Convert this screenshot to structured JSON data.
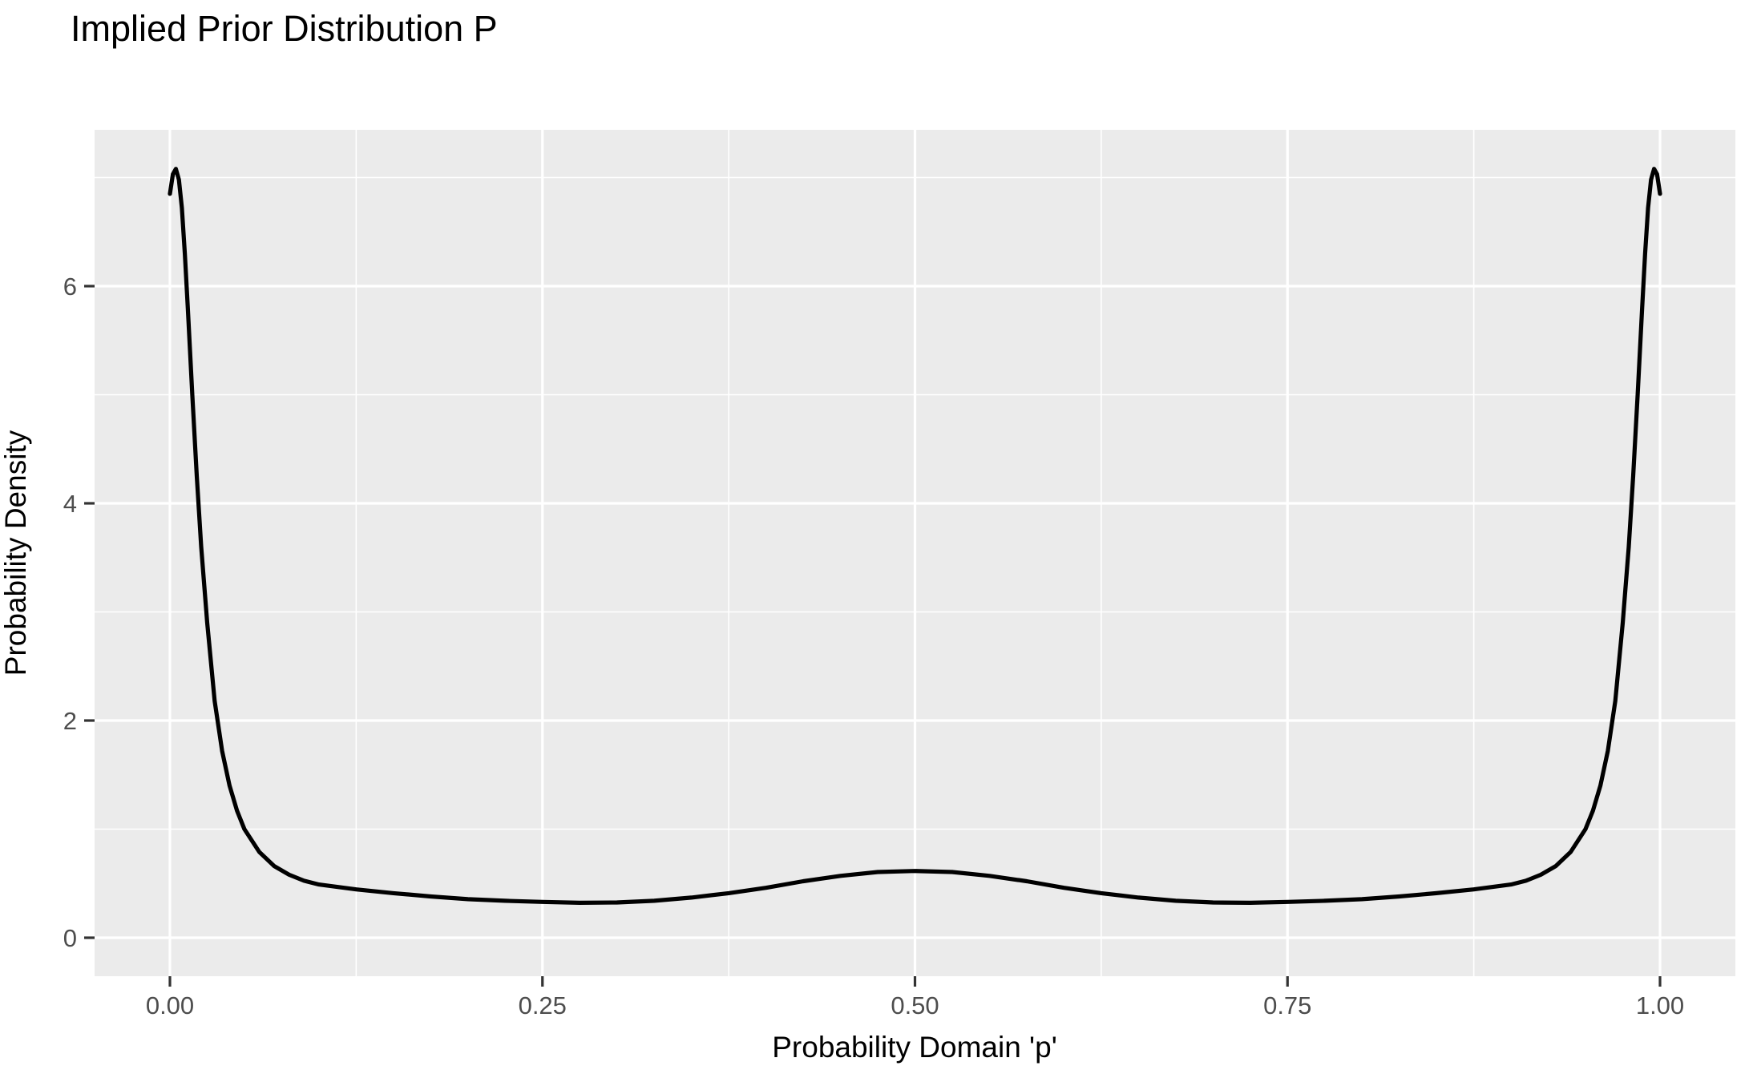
{
  "title": "Implied Prior Distribution P",
  "chart_data": {
    "type": "line",
    "subtype": "density-curve",
    "title": "Implied Prior Distribution P",
    "xlabel": "Probability Domain 'p'",
    "ylabel": "Probability Density",
    "xlim": [
      0,
      1
    ],
    "ylim": [
      0,
      7.08
    ],
    "x_ticks": [
      0.0,
      0.25,
      0.5,
      0.75,
      1.0
    ],
    "x_tick_labels": [
      "0.00",
      "0.25",
      "0.50",
      "0.75",
      "1.00"
    ],
    "x_minor_breaks": [
      0.125,
      0.375,
      0.625,
      0.875
    ],
    "y_ticks": [
      0,
      2,
      4,
      6
    ],
    "y_tick_labels": [
      "0",
      "2",
      "4",
      "6"
    ],
    "y_minor_breaks": [
      1,
      3,
      5,
      7
    ],
    "grid": true,
    "legend_position": "none",
    "theme": "ggplot-gray",
    "series": [
      {
        "name": "implied-prior-density",
        "x": [
          0.0,
          0.002,
          0.004,
          0.006,
          0.008,
          0.01,
          0.012,
          0.015,
          0.018,
          0.021,
          0.025,
          0.03,
          0.035,
          0.04,
          0.045,
          0.05,
          0.06,
          0.07,
          0.08,
          0.09,
          0.1,
          0.125,
          0.15,
          0.175,
          0.2,
          0.225,
          0.25,
          0.275,
          0.3,
          0.325,
          0.35,
          0.375,
          0.4,
          0.425,
          0.45,
          0.475,
          0.5,
          0.525,
          0.55,
          0.575,
          0.6,
          0.625,
          0.65,
          0.675,
          0.7,
          0.725,
          0.75,
          0.775,
          0.8,
          0.825,
          0.85,
          0.875,
          0.9,
          0.91,
          0.92,
          0.93,
          0.94,
          0.95,
          0.955,
          0.96,
          0.965,
          0.97,
          0.975,
          0.979,
          0.982,
          0.985,
          0.988,
          0.99,
          0.992,
          0.994,
          0.996,
          0.998,
          1.0
        ],
        "y": [
          6.85,
          7.03,
          7.08,
          6.98,
          6.72,
          6.3,
          5.8,
          5.0,
          4.25,
          3.6,
          2.9,
          2.18,
          1.72,
          1.4,
          1.17,
          1.0,
          0.79,
          0.66,
          0.58,
          0.525,
          0.49,
          0.445,
          0.41,
          0.38,
          0.355,
          0.34,
          0.33,
          0.322,
          0.325,
          0.34,
          0.37,
          0.41,
          0.46,
          0.52,
          0.57,
          0.605,
          0.615,
          0.605,
          0.57,
          0.52,
          0.46,
          0.41,
          0.37,
          0.34,
          0.325,
          0.322,
          0.33,
          0.34,
          0.355,
          0.38,
          0.41,
          0.445,
          0.49,
          0.525,
          0.58,
          0.66,
          0.79,
          1.0,
          1.17,
          1.4,
          1.72,
          2.18,
          2.9,
          3.6,
          4.25,
          5.0,
          5.8,
          6.3,
          6.72,
          6.98,
          7.08,
          7.03,
          6.85
        ]
      }
    ],
    "annotations": []
  },
  "colors": {
    "panel_background": "#EBEBEB",
    "grid_line": "#FFFFFF",
    "curve": "#000000",
    "tick_mark": "#333333",
    "tick_label": "#4D4D4D",
    "title_text": "#000000",
    "axis_title_text": "#000000",
    "page_background": "#FFFFFF"
  }
}
